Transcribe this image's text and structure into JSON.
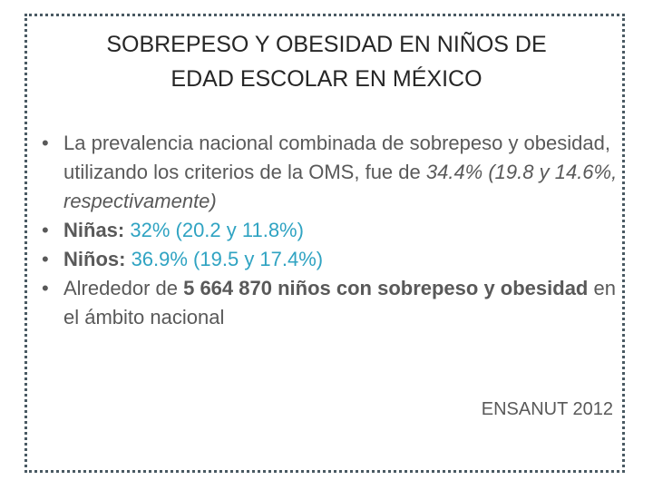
{
  "title": [
    "SOBREPESO Y OBESIDAD EN NIÑOS DE",
    "EDAD ESCOLAR EN MÉXICO"
  ],
  "bullets": [
    [
      "La prevalencia nacional combinada de sobrepeso y obesidad, utilizando los criterios de la OMS, fue de ",
      "34.4% (19.8 y 14.6%, respectivamente)"
    ],
    [
      "Niñas:",
      " 32% (20.2 y 11.8%)"
    ],
    [
      "Niños:",
      " 36.9%  (19.5 y 17.4%)"
    ],
    [
      "Alrededor de ",
      "5 664 870 niños con sobrepeso y obesidad",
      " en el ámbito nacional"
    ]
  ],
  "source": "ENSANUT 2012"
}
